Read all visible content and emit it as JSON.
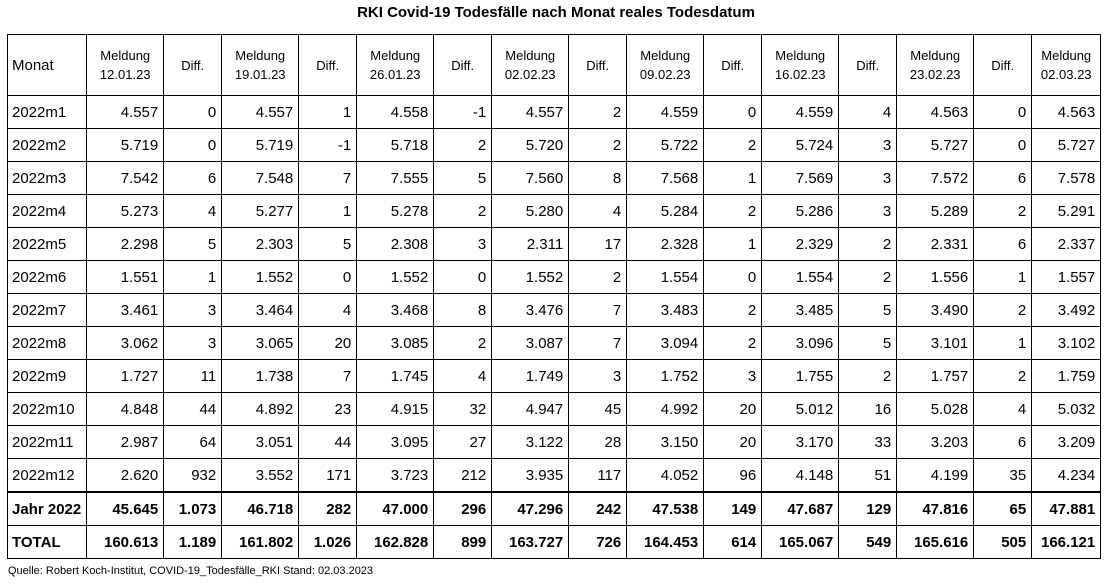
{
  "title": "RKI Covid-19 Todesfälle nach Monat reales Todesdatum",
  "source": "Quelle: Robert Koch-Institut, COVID-19_Todesfälle_RKI Stand: 02.03.2023",
  "chart_data": {
    "type": "table",
    "first_header": "Monat",
    "columns": [
      {
        "l1": "Meldung",
        "l2": "12.01.23"
      },
      {
        "l1": "Diff.",
        "l2": ""
      },
      {
        "l1": "Meldung",
        "l2": "19.01.23"
      },
      {
        "l1": "Diff.",
        "l2": ""
      },
      {
        "l1": "Meldung",
        "l2": "26.01.23"
      },
      {
        "l1": "Diff.",
        "l2": ""
      },
      {
        "l1": "Meldung",
        "l2": "02.02.23"
      },
      {
        "l1": "Diff.",
        "l2": ""
      },
      {
        "l1": "Meldung",
        "l2": "09.02.23"
      },
      {
        "l1": "Diff.",
        "l2": ""
      },
      {
        "l1": "Meldung",
        "l2": "16.02.23"
      },
      {
        "l1": "Diff.",
        "l2": ""
      },
      {
        "l1": "Meldung",
        "l2": "23.02.23"
      },
      {
        "l1": "Diff.",
        "l2": ""
      },
      {
        "l1": "Meldung",
        "l2": "02.03.23"
      }
    ],
    "rows": [
      {
        "label": "2022m1",
        "cells": [
          "4.557",
          "0",
          "4.557",
          "1",
          "4.558",
          "-1",
          "4.557",
          "2",
          "4.559",
          "0",
          "4.559",
          "4",
          "4.563",
          "0",
          "4.563"
        ]
      },
      {
        "label": "2022m2",
        "cells": [
          "5.719",
          "0",
          "5.719",
          "-1",
          "5.718",
          "2",
          "5.720",
          "2",
          "5.722",
          "2",
          "5.724",
          "3",
          "5.727",
          "0",
          "5.727"
        ]
      },
      {
        "label": "2022m3",
        "cells": [
          "7.542",
          "6",
          "7.548",
          "7",
          "7.555",
          "5",
          "7.560",
          "8",
          "7.568",
          "1",
          "7.569",
          "3",
          "7.572",
          "6",
          "7.578"
        ]
      },
      {
        "label": "2022m4",
        "cells": [
          "5.273",
          "4",
          "5.277",
          "1",
          "5.278",
          "2",
          "5.280",
          "4",
          "5.284",
          "2",
          "5.286",
          "3",
          "5.289",
          "2",
          "5.291"
        ]
      },
      {
        "label": "2022m5",
        "cells": [
          "2.298",
          "5",
          "2.303",
          "5",
          "2.308",
          "3",
          "2.311",
          "17",
          "2.328",
          "1",
          "2.329",
          "2",
          "2.331",
          "6",
          "2.337"
        ]
      },
      {
        "label": "2022m6",
        "cells": [
          "1.551",
          "1",
          "1.552",
          "0",
          "1.552",
          "0",
          "1.552",
          "2",
          "1.554",
          "0",
          "1.554",
          "2",
          "1.556",
          "1",
          "1.557"
        ]
      },
      {
        "label": "2022m7",
        "cells": [
          "3.461",
          "3",
          "3.464",
          "4",
          "3.468",
          "8",
          "3.476",
          "7",
          "3.483",
          "2",
          "3.485",
          "5",
          "3.490",
          "2",
          "3.492"
        ]
      },
      {
        "label": "2022m8",
        "cells": [
          "3.062",
          "3",
          "3.065",
          "20",
          "3.085",
          "2",
          "3.087",
          "7",
          "3.094",
          "2",
          "3.096",
          "5",
          "3.101",
          "1",
          "3.102"
        ]
      },
      {
        "label": "2022m9",
        "cells": [
          "1.727",
          "11",
          "1.738",
          "7",
          "1.745",
          "4",
          "1.749",
          "3",
          "1.752",
          "3",
          "1.755",
          "2",
          "1.757",
          "2",
          "1.759"
        ]
      },
      {
        "label": "2022m10",
        "cells": [
          "4.848",
          "44",
          "4.892",
          "23",
          "4.915",
          "32",
          "4.947",
          "45",
          "4.992",
          "20",
          "5.012",
          "16",
          "5.028",
          "4",
          "5.032"
        ]
      },
      {
        "label": "2022m11",
        "cells": [
          "2.987",
          "64",
          "3.051",
          "44",
          "3.095",
          "27",
          "3.122",
          "28",
          "3.150",
          "20",
          "3.170",
          "33",
          "3.203",
          "6",
          "3.209"
        ]
      },
      {
        "label": "2022m12",
        "cells": [
          "2.620",
          "932",
          "3.552",
          "171",
          "3.723",
          "212",
          "3.935",
          "117",
          "4.052",
          "96",
          "4.148",
          "51",
          "4.199",
          "35",
          "4.234"
        ]
      },
      {
        "label": "Jahr 2022",
        "bold": true,
        "cells": [
          "45.645",
          "1.073",
          "46.718",
          "282",
          "47.000",
          "296",
          "47.296",
          "242",
          "47.538",
          "149",
          "47.687",
          "129",
          "47.816",
          "65",
          "47.881"
        ]
      },
      {
        "label": "TOTAL",
        "bold": true,
        "cells": [
          "160.613",
          "1.189",
          "161.802",
          "1.026",
          "162.828",
          "899",
          "163.727",
          "726",
          "164.453",
          "614",
          "165.067",
          "549",
          "165.616",
          "505",
          "166.121"
        ]
      }
    ]
  }
}
